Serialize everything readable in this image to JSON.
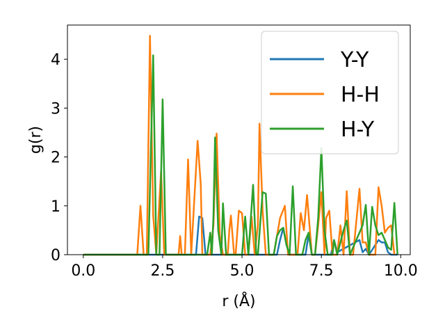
{
  "chart_data": {
    "type": "line",
    "title": "",
    "xlabel": "r (Å)",
    "ylabel": "g(r)",
    "xlim": [
      -0.5,
      10.3
    ],
    "ylim": [
      0,
      4.7
    ],
    "x_ticks": [
      0.0,
      2.5,
      5.0,
      7.5,
      10.0
    ],
    "x_tick_labels": [
      "0.0",
      "2.5",
      "5.0",
      "7.5",
      "10.0"
    ],
    "y_ticks": [
      0,
      1,
      2,
      3,
      4
    ],
    "y_tick_labels": [
      "0",
      "1",
      "2",
      "3",
      "4"
    ],
    "grid": false,
    "legend_position": "top-right",
    "series": [
      {
        "name": "Y-Y",
        "color": "#1f77b4",
        "points": [
          [
            0,
            0
          ],
          [
            3.55,
            0
          ],
          [
            3.65,
            0.78
          ],
          [
            3.75,
            0.75
          ],
          [
            3.85,
            0
          ],
          [
            6.1,
            0
          ],
          [
            6.2,
            0.3
          ],
          [
            6.3,
            0.55
          ],
          [
            6.4,
            0.2
          ],
          [
            6.5,
            0
          ],
          [
            7.0,
            0
          ],
          [
            7.1,
            0.42
          ],
          [
            7.2,
            0
          ],
          [
            7.8,
            0
          ],
          [
            7.9,
            0.3
          ],
          [
            8.0,
            0.05
          ],
          [
            8.7,
            0.3
          ],
          [
            8.8,
            0.05
          ],
          [
            8.9,
            0.12
          ],
          [
            9.0,
            0
          ],
          [
            9.3,
            0.3
          ],
          [
            9.4,
            0.25
          ],
          [
            9.5,
            0.25
          ],
          [
            9.6,
            0.05
          ],
          [
            9.7,
            0
          ],
          [
            9.9,
            0
          ]
        ]
      },
      {
        "name": "H-H",
        "color": "#ff7f0e",
        "points": [
          [
            0,
            0
          ],
          [
            1.7,
            0
          ],
          [
            1.8,
            1.0
          ],
          [
            1.9,
            0
          ],
          [
            2.0,
            0
          ],
          [
            2.1,
            4.48
          ],
          [
            2.2,
            0.8
          ],
          [
            2.3,
            0
          ],
          [
            2.45,
            1.72
          ],
          [
            2.55,
            0
          ],
          [
            3.0,
            0
          ],
          [
            3.05,
            0.38
          ],
          [
            3.1,
            0
          ],
          [
            3.2,
            0
          ],
          [
            3.3,
            1.95
          ],
          [
            3.4,
            0
          ],
          [
            3.6,
            2.33
          ],
          [
            3.7,
            1.45
          ],
          [
            3.75,
            0
          ],
          [
            4.0,
            0
          ],
          [
            4.1,
            0.6
          ],
          [
            4.2,
            2.48
          ],
          [
            4.3,
            0.4
          ],
          [
            4.4,
            0
          ],
          [
            4.55,
            0
          ],
          [
            4.6,
            0.5
          ],
          [
            4.65,
            0.8
          ],
          [
            4.75,
            0
          ],
          [
            4.8,
            0
          ],
          [
            4.9,
            0.9
          ],
          [
            5.0,
            0.85
          ],
          [
            5.1,
            0
          ],
          [
            5.2,
            0
          ],
          [
            5.3,
            0.78
          ],
          [
            5.4,
            0
          ],
          [
            5.5,
            0.6
          ],
          [
            5.55,
            2.68
          ],
          [
            5.65,
            0.9
          ],
          [
            5.75,
            0
          ],
          [
            5.9,
            0
          ],
          [
            6.0,
            0
          ],
          [
            6.2,
            0.75
          ],
          [
            6.35,
            1.0
          ],
          [
            6.45,
            0
          ],
          [
            6.6,
            0
          ],
          [
            6.75,
            0
          ],
          [
            6.85,
            0.85
          ],
          [
            6.95,
            0.5
          ],
          [
            7.05,
            1.22
          ],
          [
            7.2,
            0
          ],
          [
            7.3,
            0
          ],
          [
            7.4,
            0.6
          ],
          [
            7.5,
            1.28
          ],
          [
            7.6,
            0
          ],
          [
            7.65,
            0.75
          ],
          [
            7.75,
            0.9
          ],
          [
            7.85,
            0
          ],
          [
            8.0,
            0
          ],
          [
            8.1,
            0.6
          ],
          [
            8.2,
            0
          ],
          [
            8.3,
            1.3
          ],
          [
            8.4,
            0
          ],
          [
            8.5,
            0
          ],
          [
            8.7,
            1.35
          ],
          [
            8.8,
            0.25
          ],
          [
            8.9,
            0.25
          ],
          [
            9.0,
            0
          ],
          [
            9.1,
            0
          ],
          [
            9.2,
            0
          ],
          [
            9.3,
            1.38
          ],
          [
            9.4,
            1.0
          ],
          [
            9.5,
            0.45
          ],
          [
            9.6,
            0.55
          ],
          [
            9.7,
            0.6
          ],
          [
            9.8,
            0
          ]
        ]
      },
      {
        "name": "H-Y",
        "color": "#2ca02c",
        "points": [
          [
            0,
            0
          ],
          [
            2.05,
            0
          ],
          [
            2.2,
            4.08
          ],
          [
            2.3,
            0
          ],
          [
            2.4,
            0
          ],
          [
            2.5,
            3.18
          ],
          [
            2.6,
            0
          ],
          [
            3.9,
            0
          ],
          [
            4.0,
            0.45
          ],
          [
            4.05,
            0
          ],
          [
            4.1,
            0.8
          ],
          [
            4.15,
            2.4
          ],
          [
            4.25,
            0.5
          ],
          [
            4.35,
            0
          ],
          [
            4.4,
            1.05
          ],
          [
            4.5,
            0
          ],
          [
            5.0,
            0
          ],
          [
            5.1,
            0.78
          ],
          [
            5.2,
            0
          ],
          [
            5.35,
            1.43
          ],
          [
            5.45,
            0
          ],
          [
            5.5,
            0
          ],
          [
            5.65,
            1.28
          ],
          [
            5.75,
            1.25
          ],
          [
            5.85,
            0
          ],
          [
            6.0,
            0
          ],
          [
            6.1,
            0.38
          ],
          [
            6.2,
            0.5
          ],
          [
            6.3,
            0.55
          ],
          [
            6.4,
            0.2
          ],
          [
            6.5,
            0
          ],
          [
            6.6,
            1.4
          ],
          [
            6.7,
            0
          ],
          [
            6.9,
            0
          ],
          [
            7.0,
            0.3
          ],
          [
            7.1,
            0.45
          ],
          [
            7.2,
            0
          ],
          [
            7.3,
            0
          ],
          [
            7.4,
            0.75
          ],
          [
            7.5,
            2.18
          ],
          [
            7.6,
            0.5
          ],
          [
            7.7,
            0
          ],
          [
            7.85,
            0
          ],
          [
            7.9,
            0.3
          ],
          [
            8.0,
            0
          ],
          [
            8.2,
            0.5
          ],
          [
            8.3,
            0.7
          ],
          [
            8.4,
            0
          ],
          [
            8.5,
            0.15
          ],
          [
            8.6,
            0.3
          ],
          [
            8.7,
            0.45
          ],
          [
            8.8,
            0.6
          ],
          [
            8.9,
            1.02
          ],
          [
            9.0,
            0
          ],
          [
            9.1,
            0.98
          ],
          [
            9.2,
            0.6
          ],
          [
            9.3,
            0.4
          ],
          [
            9.4,
            0.45
          ],
          [
            9.5,
            0.3
          ],
          [
            9.6,
            0.15
          ],
          [
            9.7,
            0.1
          ],
          [
            9.8,
            1.06
          ],
          [
            9.9,
            0
          ]
        ]
      }
    ]
  }
}
